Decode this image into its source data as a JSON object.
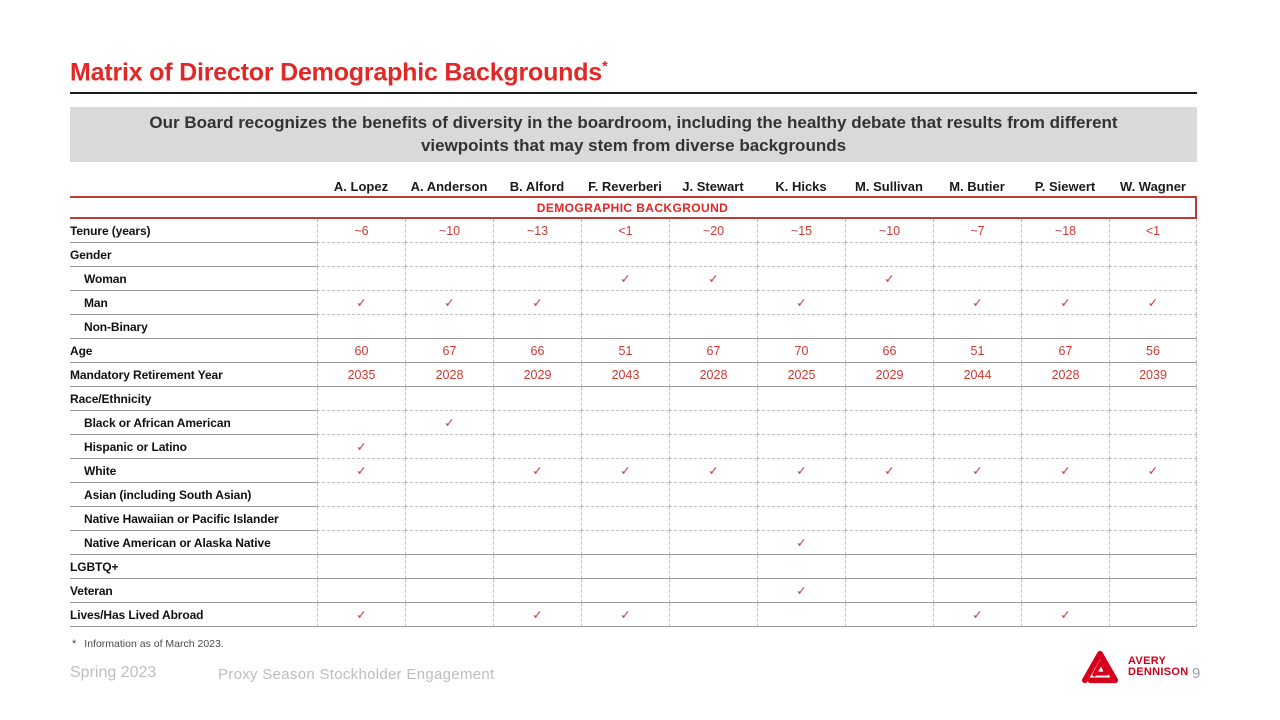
{
  "title": {
    "text": "Matrix of Director Demographic Backgrounds",
    "asterisk": "*"
  },
  "banner": {
    "text": "Our Board recognizes the benefits of diversity in the boardroom, including the healthy debate that results from different viewpoints that may stem from diverse backgrounds"
  },
  "table": {
    "section_header": "DEMOGRAPHIC BACKGROUND",
    "directors": [
      "A. Lopez",
      "A. Anderson",
      "B. Alford",
      "F. Reverberi",
      "J. Stewart",
      "K. Hicks",
      "M. Sullivan",
      "M. Butier",
      "P. Siewert",
      "W. Wagner"
    ],
    "check_glyph": "✓",
    "rows": [
      {
        "label": "Tenure (years)",
        "indent": false,
        "line": "dashed",
        "cells": [
          "~6",
          "~10",
          "~13",
          "<1",
          "~20",
          "~15",
          "~10",
          "~7",
          "~18",
          "<1"
        ]
      },
      {
        "label": "Gender",
        "indent": false,
        "line": "dashed",
        "cells": [
          "",
          "",
          "",
          "",
          "",
          "",
          "",
          "",
          "",
          ""
        ]
      },
      {
        "label": "Woman",
        "indent": true,
        "line": "dashed",
        "cells": [
          "",
          "",
          "",
          "✓",
          "✓",
          "",
          "✓",
          "",
          "",
          ""
        ]
      },
      {
        "label": "Man",
        "indent": true,
        "line": "dashed",
        "cells": [
          "✓",
          "✓",
          "✓",
          "",
          "",
          "✓",
          "",
          "✓",
          "✓",
          "✓"
        ]
      },
      {
        "label": "Non-Binary",
        "indent": true,
        "line": "solid",
        "cells": [
          "",
          "",
          "",
          "",
          "",
          "",
          "",
          "",
          "",
          ""
        ]
      },
      {
        "label": "Age",
        "indent": false,
        "line": "solid",
        "cells": [
          "60",
          "67",
          "66",
          "51",
          "67",
          "70",
          "66",
          "51",
          "67",
          "56"
        ]
      },
      {
        "label": "Mandatory Retirement Year",
        "indent": false,
        "line": "solid",
        "cells": [
          "2035",
          "2028",
          "2029",
          "2043",
          "2028",
          "2025",
          "2029",
          "2044",
          "2028",
          "2039"
        ]
      },
      {
        "label": "Race/Ethnicity",
        "indent": false,
        "line": "dashed",
        "cells": [
          "",
          "",
          "",
          "",
          "",
          "",
          "",
          "",
          "",
          ""
        ]
      },
      {
        "label": "Black or African American",
        "indent": true,
        "line": "dashed",
        "cells": [
          "",
          "✓",
          "",
          "",
          "",
          "",
          "",
          "",
          "",
          ""
        ]
      },
      {
        "label": "Hispanic or Latino",
        "indent": true,
        "line": "dashed",
        "cells": [
          "✓",
          "",
          "",
          "",
          "",
          "",
          "",
          "",
          "",
          ""
        ]
      },
      {
        "label": "White",
        "indent": true,
        "line": "dashed",
        "cells": [
          "✓",
          "",
          "✓",
          "✓",
          "✓",
          "✓",
          "✓",
          "✓",
          "✓",
          "✓"
        ]
      },
      {
        "label": "Asian (including South Asian)",
        "indent": true,
        "line": "dashed",
        "cells": [
          "",
          "",
          "",
          "",
          "",
          "",
          "",
          "",
          "",
          ""
        ]
      },
      {
        "label": "Native Hawaiian or Pacific Islander",
        "indent": true,
        "line": "dashed",
        "cells": [
          "",
          "",
          "",
          "",
          "",
          "",
          "",
          "",
          "",
          ""
        ]
      },
      {
        "label": "Native American or Alaska Native",
        "indent": true,
        "line": "solid",
        "cells": [
          "",
          "",
          "",
          "",
          "",
          "✓",
          "",
          "",
          "",
          ""
        ]
      },
      {
        "label": "LGBTQ+",
        "indent": false,
        "line": "solid",
        "cells": [
          "",
          "",
          "",
          "",
          "",
          "",
          "",
          "",
          "",
          ""
        ]
      },
      {
        "label": "Veteran",
        "indent": false,
        "line": "solid",
        "cells": [
          "",
          "",
          "",
          "",
          "",
          "✓",
          "",
          "",
          "",
          ""
        ]
      },
      {
        "label": "Lives/Has Lived Abroad",
        "indent": false,
        "line": "solid",
        "cells": [
          "✓",
          "",
          "✓",
          "✓",
          "",
          "",
          "",
          "✓",
          "✓",
          ""
        ]
      }
    ]
  },
  "footnote": {
    "marker": "*",
    "text": "Information as of March 2023."
  },
  "footer": {
    "left": "Spring 2023",
    "center": "Proxy Season Stockholder Engagement",
    "page": "9"
  },
  "logo": {
    "icon": "avery-dennison-triangle-icon",
    "line1": "AVERY",
    "line2": "DENNISON"
  },
  "colors": {
    "title_red": "#E32726",
    "rule_red": "#BE3A34",
    "value_red": "#CE3A32",
    "brand_red": "#D6001C",
    "banner_bg": "#D9D9D9",
    "banner_text": "#333333",
    "line_gray": "#9A9A9A",
    "dash_gray": "#BDBDBD",
    "footer_gray": "#BDBDBD"
  }
}
